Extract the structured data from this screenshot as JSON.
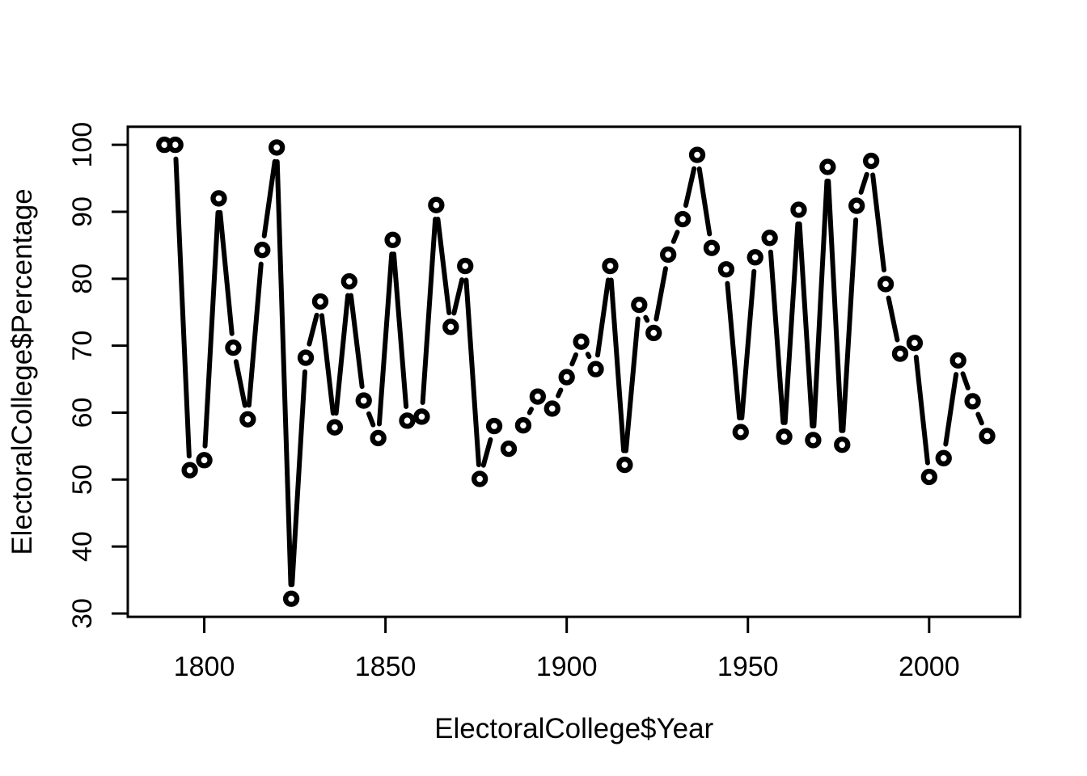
{
  "chart_data": {
    "type": "line",
    "subtype": "points-and-line (R type='b', open circle markers)",
    "title": "",
    "xlabel": "ElectoralCollege$Year",
    "ylabel": "ElectoralCollege$Percentage",
    "x": [
      1789,
      1792,
      1796,
      1800,
      1804,
      1808,
      1812,
      1816,
      1820,
      1824,
      1828,
      1832,
      1836,
      1840,
      1844,
      1848,
      1852,
      1856,
      1860,
      1864,
      1868,
      1872,
      1876,
      1880,
      1884,
      1888,
      1892,
      1896,
      1900,
      1904,
      1908,
      1912,
      1916,
      1920,
      1924,
      1928,
      1932,
      1936,
      1940,
      1944,
      1948,
      1952,
      1956,
      1960,
      1964,
      1968,
      1972,
      1976,
      1980,
      1984,
      1988,
      1992,
      1996,
      2000,
      2004,
      2008,
      2012,
      2016
    ],
    "y": [
      100,
      100,
      51.4,
      52.9,
      92.0,
      69.7,
      59.0,
      84.3,
      99.6,
      32.2,
      68.2,
      76.6,
      57.8,
      79.6,
      61.8,
      56.2,
      85.8,
      58.8,
      59.4,
      91.0,
      72.8,
      81.9,
      50.1,
      58.0,
      54.6,
      58.1,
      62.4,
      60.6,
      65.3,
      70.6,
      66.5,
      81.9,
      52.2,
      76.1,
      71.9,
      83.6,
      88.9,
      98.5,
      84.6,
      81.4,
      57.1,
      83.2,
      86.1,
      56.4,
      90.3,
      55.9,
      96.7,
      55.2,
      90.9,
      97.6,
      79.2,
      68.8,
      70.4,
      50.4,
      53.2,
      67.8,
      61.7,
      56.5
    ],
    "xticks": [
      1800,
      1850,
      1900,
      1950,
      2000
    ],
    "x_tick_labels": [
      "1800",
      "1850",
      "1900",
      "1950",
      "2000"
    ],
    "yticks": [
      30,
      40,
      50,
      60,
      70,
      80,
      90,
      100
    ],
    "y_tick_labels": [
      "30",
      "40",
      "50",
      "60",
      "70",
      "80",
      "90",
      "100"
    ],
    "xlim": [
      1778.9,
      2025.1
    ],
    "ylim": [
      29.5,
      102.7
    ],
    "marker": "open-circle",
    "line_color": "#000000",
    "background_color": "#ffffff",
    "grid": false,
    "legend": null
  }
}
